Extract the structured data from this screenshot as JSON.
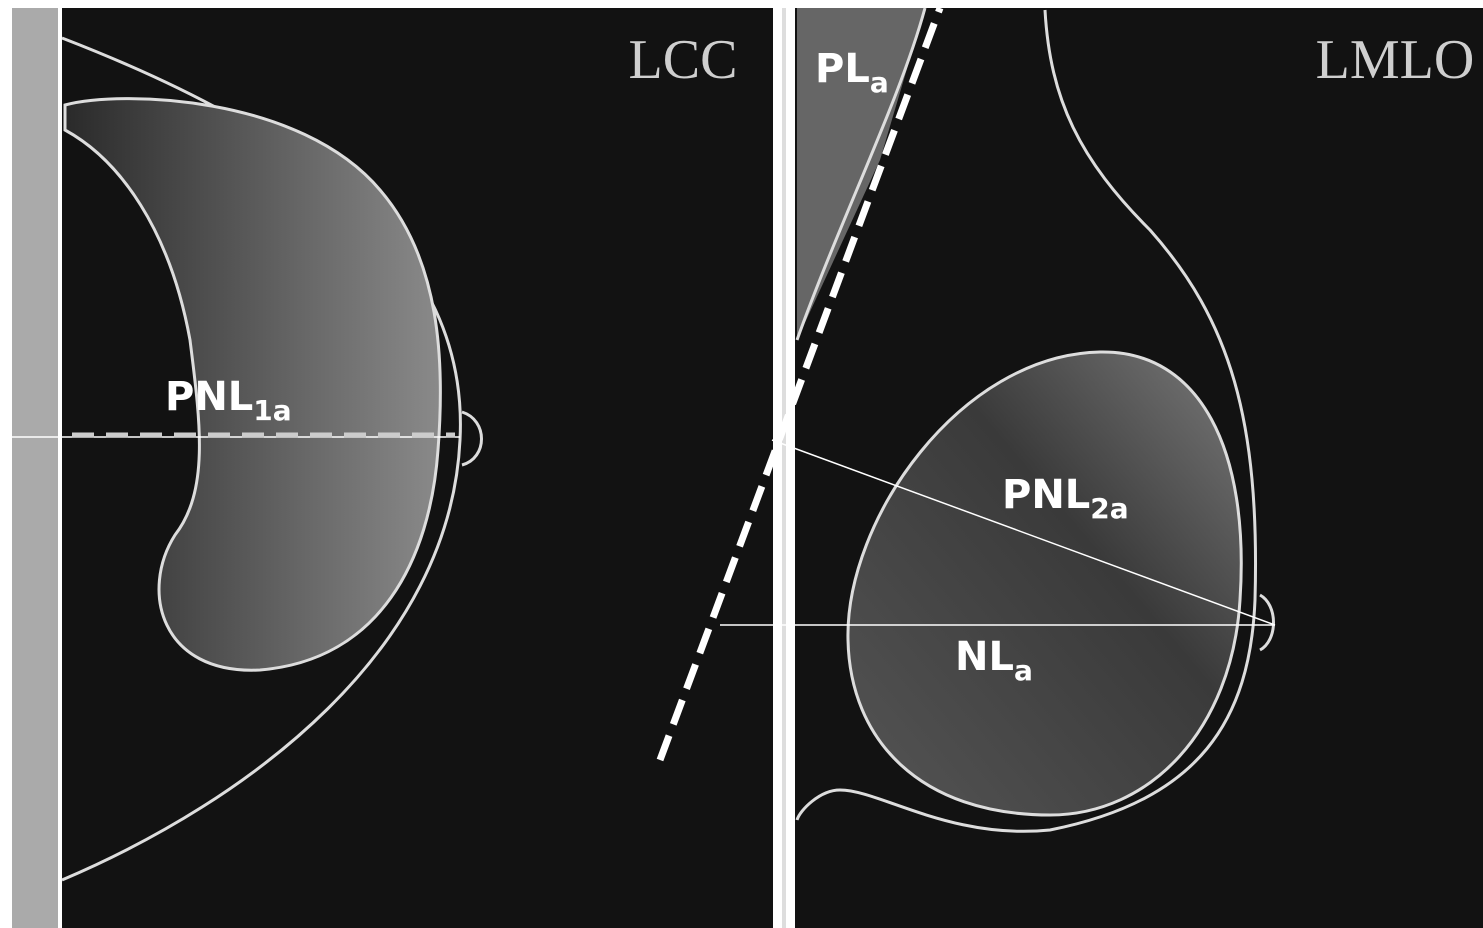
{
  "panels": [
    {
      "view": "LCC",
      "labels": [
        {
          "text": "PNL",
          "subscript": "1a"
        }
      ]
    },
    {
      "view": "LMLO",
      "labels": [
        {
          "text": "PL",
          "subscript": "a"
        },
        {
          "text": "PNL",
          "subscript": "2a"
        },
        {
          "text": "NL",
          "subscript": "a"
        }
      ]
    }
  ]
}
